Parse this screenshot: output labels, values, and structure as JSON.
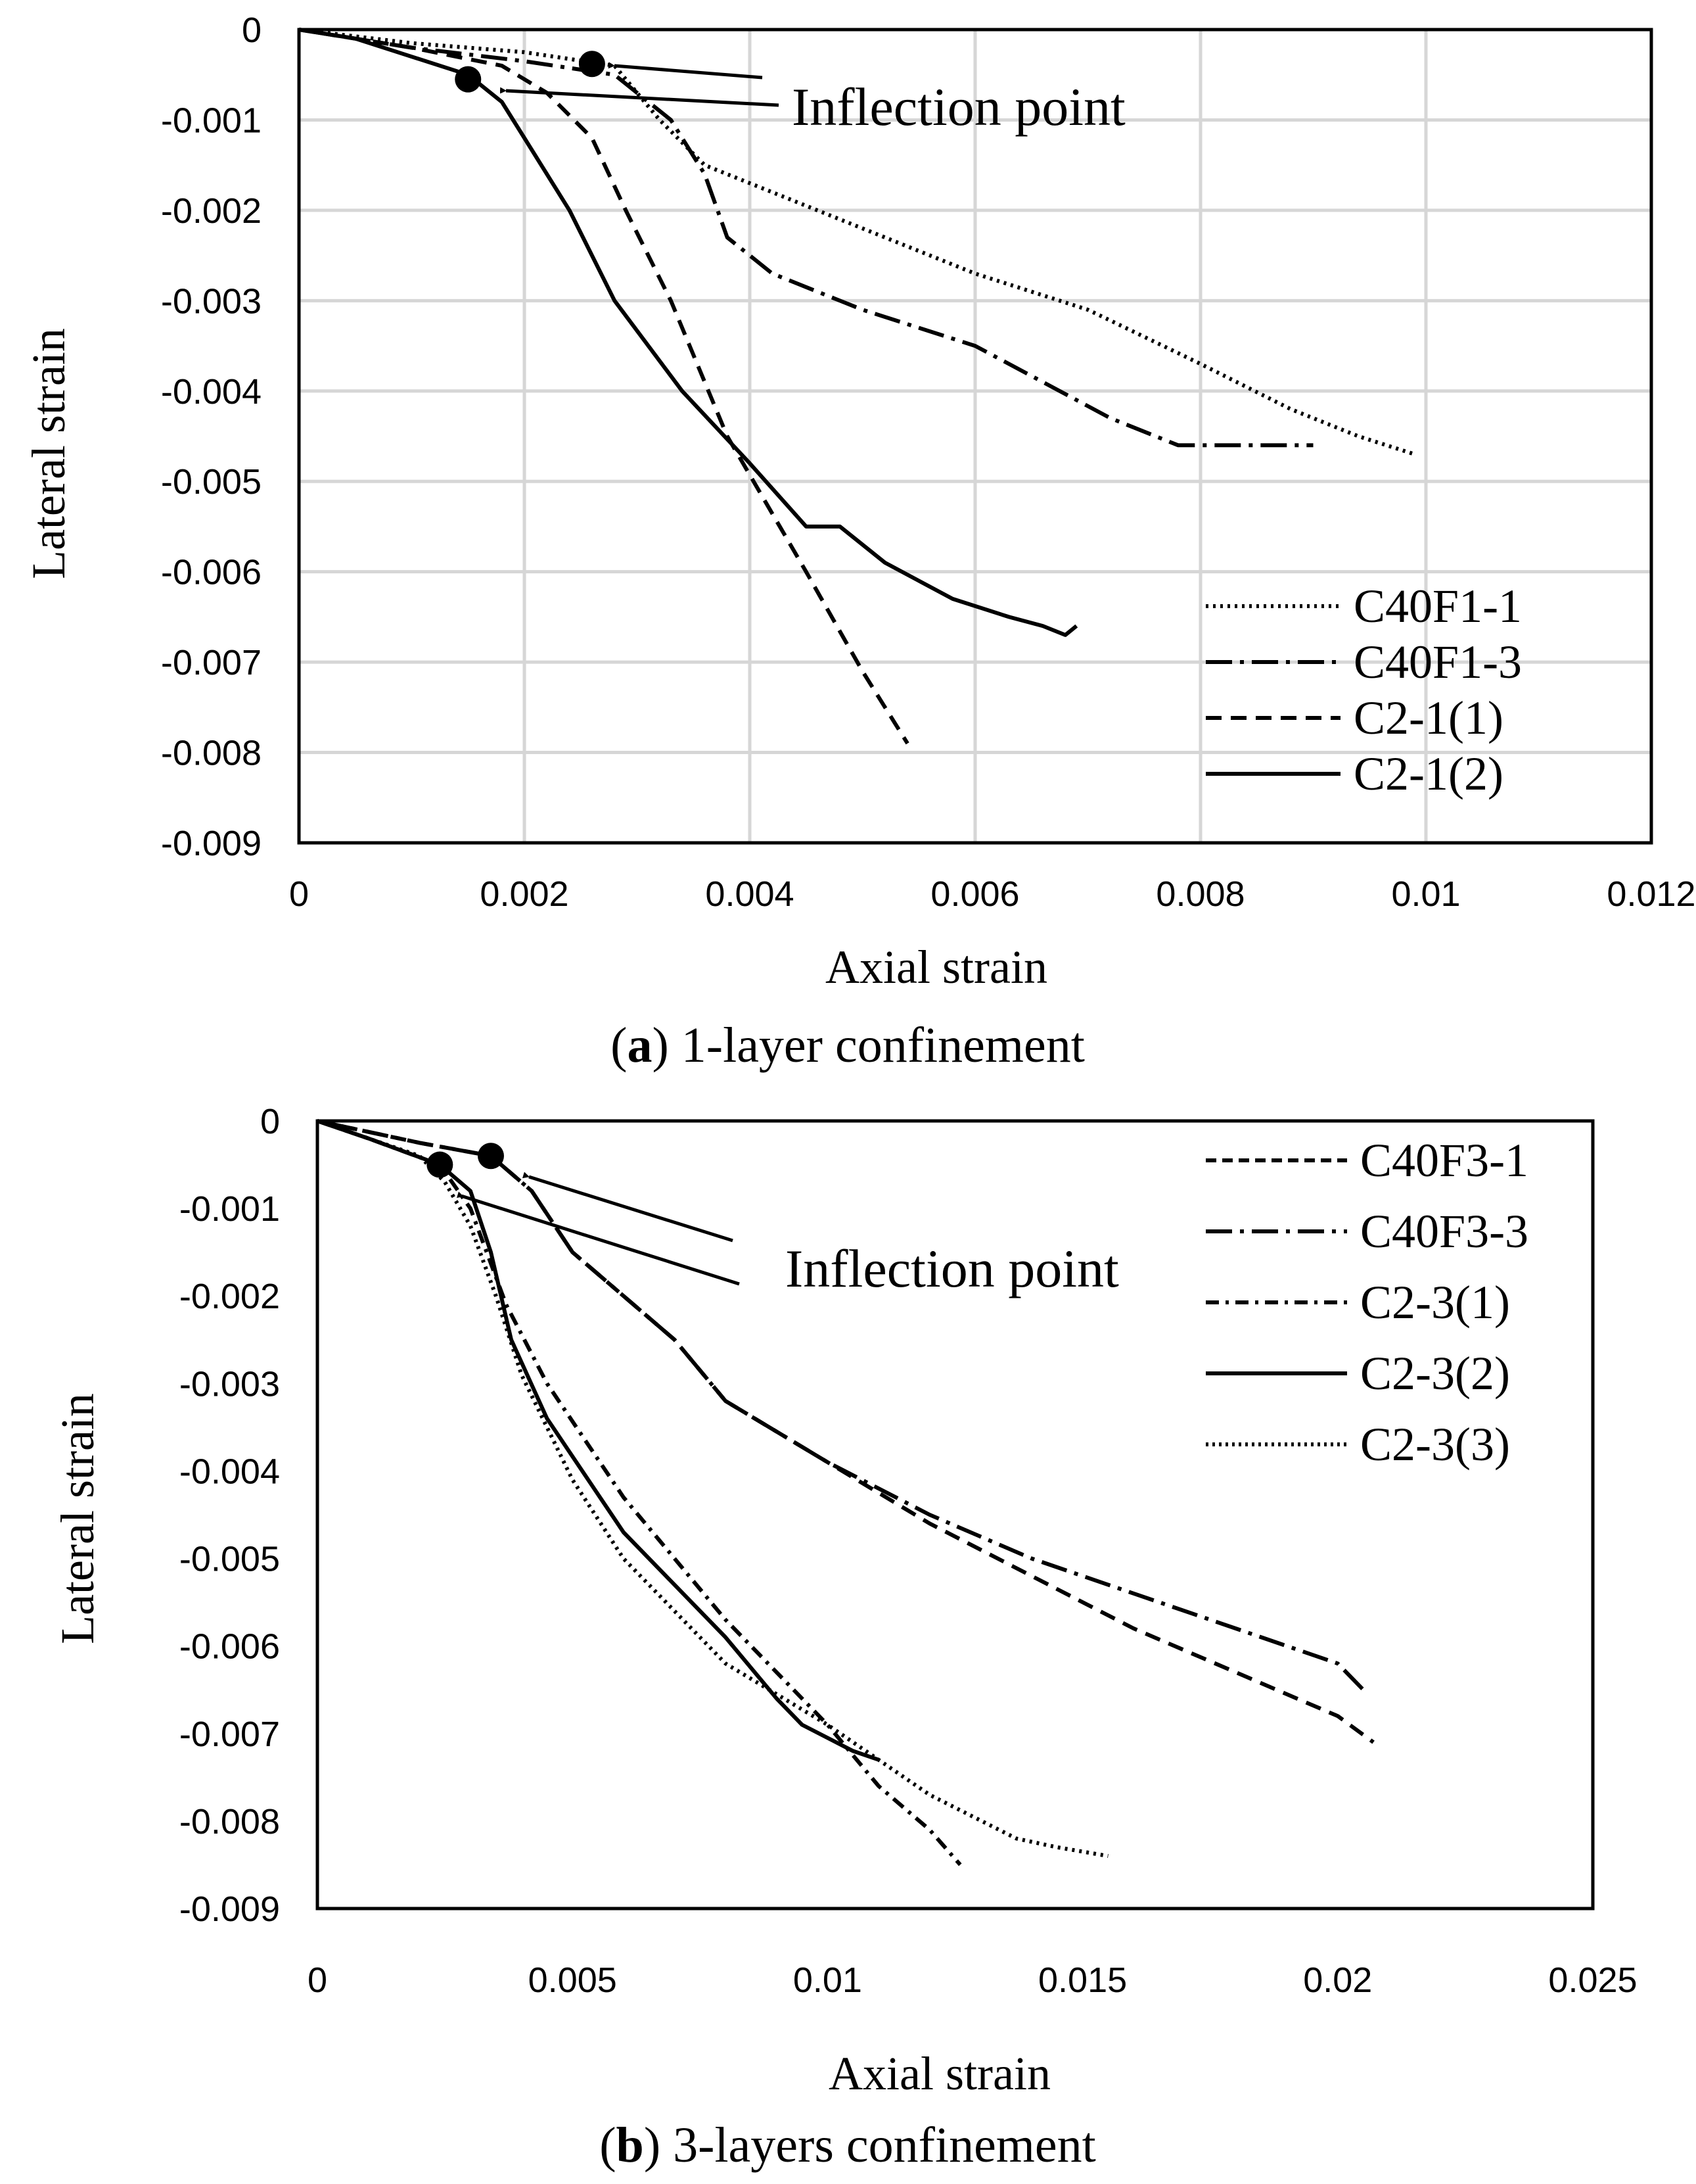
{
  "chart_data": [
    {
      "type": "line",
      "caption_label": "a",
      "caption_text": ") 1-layer confinement",
      "caption_open": "(",
      "xlabel": "Axial strain",
      "ylabel": "Lateral strain",
      "xlim": [
        0,
        0.012
      ],
      "ylim": [
        -0.009,
        0
      ],
      "xticks": [
        0,
        0.002,
        0.004,
        0.006,
        0.008,
        0.01,
        0.012
      ],
      "xtick_labels": [
        "0",
        "0.002",
        "0.004",
        "0.006",
        "0.008",
        "0.01",
        "0.012"
      ],
      "yticks": [
        0,
        -0.001,
        -0.002,
        -0.003,
        -0.004,
        -0.005,
        -0.006,
        -0.007,
        -0.008,
        -0.009
      ],
      "ytick_labels": [
        "0",
        "-0.001",
        "-0.002",
        "-0.003",
        "-0.004",
        "-0.005",
        "-0.006",
        "-0.007",
        "-0.008",
        "-0.009"
      ],
      "grid": true,
      "legend_position": "bottom-right",
      "annotation": "Inflection point",
      "inflection_points": [
        [
          0.0026,
          -0.00038
        ],
        [
          0.0015,
          -0.00055
        ]
      ],
      "series": [
        {
          "name": "C40F1-1",
          "style": "dotted",
          "x": [
            0,
            0.001,
            0.002,
            0.0028,
            0.0032,
            0.0036,
            0.0042,
            0.005,
            0.006,
            0.007,
            0.0075,
            0.008,
            0.0088,
            0.0094,
            0.0099
          ],
          "y": [
            0,
            -0.00015,
            -0.00025,
            -0.0004,
            -0.001,
            -0.0015,
            -0.0018,
            -0.0022,
            -0.0027,
            -0.0031,
            -0.0034,
            -0.0037,
            -0.0042,
            -0.0045,
            -0.0047
          ]
        },
        {
          "name": "C40F1-3",
          "style": "dashdot",
          "x": [
            0,
            0.001,
            0.002,
            0.0028,
            0.0033,
            0.0036,
            0.0038,
            0.0042,
            0.005,
            0.006,
            0.0066,
            0.0072,
            0.0078,
            0.0085,
            0.009
          ],
          "y": [
            0,
            -0.0002,
            -0.00035,
            -0.0005,
            -0.001,
            -0.0016,
            -0.0023,
            -0.0027,
            -0.0031,
            -0.0035,
            -0.0039,
            -0.0043,
            -0.0046,
            -0.0046,
            -0.0046
          ]
        },
        {
          "name": "C2-1(1)",
          "style": "dashed",
          "x": [
            0,
            0.001,
            0.0018,
            0.0022,
            0.0026,
            0.0029,
            0.0033,
            0.0038,
            0.0045,
            0.005,
            0.0054
          ],
          "y": [
            0,
            -0.0002,
            -0.0004,
            -0.0007,
            -0.0012,
            -0.002,
            -0.003,
            -0.0045,
            -0.006,
            -0.0071,
            -0.0079
          ]
        },
        {
          "name": "C2-1(2)",
          "style": "solid",
          "x": [
            0,
            0.0005,
            0.0015,
            0.0018,
            0.002,
            0.0024,
            0.0028,
            0.0034,
            0.004,
            0.0045,
            0.0048,
            0.0052,
            0.0058,
            0.0063,
            0.0066,
            0.0068,
            0.0069
          ],
          "y": [
            0,
            -0.0001,
            -0.0005,
            -0.0008,
            -0.0012,
            -0.002,
            -0.003,
            -0.004,
            -0.0048,
            -0.0055,
            -0.0055,
            -0.0059,
            -0.0063,
            -0.0065,
            -0.0066,
            -0.0067,
            -0.0066
          ]
        }
      ]
    },
    {
      "type": "line",
      "caption_label": "b",
      "caption_text": ") 3-layers confinement",
      "caption_open": "(",
      "xlabel": "Axial strain",
      "ylabel": "Lateral strain",
      "xlim": [
        0,
        0.025
      ],
      "ylim": [
        -0.009,
        0
      ],
      "xticks": [
        0,
        0.005,
        0.01,
        0.015,
        0.02,
        0.025
      ],
      "xtick_labels": [
        "0",
        "0.005",
        "0.01",
        "0.015",
        "0.02",
        "0.025"
      ],
      "yticks": [
        0,
        -0.001,
        -0.002,
        -0.003,
        -0.004,
        -0.005,
        -0.006,
        -0.007,
        -0.008,
        -0.009
      ],
      "ytick_labels": [
        "0",
        "-0.001",
        "-0.002",
        "-0.003",
        "-0.004",
        "-0.005",
        "-0.006",
        "-0.007",
        "-0.008",
        "-0.009"
      ],
      "grid": false,
      "legend_position": "top-right",
      "annotation": "Inflection point",
      "inflection_points": [
        [
          0.0034,
          -0.0004
        ],
        [
          0.0024,
          -0.0005
        ]
      ],
      "series": [
        {
          "name": "C40F3-1",
          "style": "dashed",
          "x": [
            0,
            0.002,
            0.0034,
            0.0042,
            0.005,
            0.006,
            0.007,
            0.008,
            0.01,
            0.012,
            0.014,
            0.016,
            0.018,
            0.02,
            0.0207
          ],
          "y": [
            0,
            -0.00025,
            -0.0004,
            -0.0008,
            -0.0015,
            -0.002,
            -0.0025,
            -0.0032,
            -0.0039,
            -0.0046,
            -0.0052,
            -0.0058,
            -0.0063,
            -0.0068,
            -0.0071
          ]
        },
        {
          "name": "C40F3-3",
          "style": "dashdot",
          "x": [
            0,
            0.002,
            0.0034,
            0.0042,
            0.005,
            0.006,
            0.007,
            0.008,
            0.01,
            0.012,
            0.014,
            0.016,
            0.018,
            0.02,
            0.0205
          ],
          "y": [
            0,
            -0.00025,
            -0.0004,
            -0.0008,
            -0.0015,
            -0.002,
            -0.0025,
            -0.0032,
            -0.0039,
            -0.0045,
            -0.005,
            -0.0054,
            -0.0058,
            -0.0062,
            -0.0065
          ]
        },
        {
          "name": "C2-3(1)",
          "style": "dashdot2",
          "x": [
            0,
            0.001,
            0.0024,
            0.003,
            0.0037,
            0.0045,
            0.006,
            0.008,
            0.01,
            0.011,
            0.012,
            0.0126
          ],
          "y": [
            0,
            -0.0002,
            -0.0005,
            -0.001,
            -0.0021,
            -0.003,
            -0.0043,
            -0.0057,
            -0.0069,
            -0.0076,
            -0.0081,
            -0.0085
          ]
        },
        {
          "name": "C2-3(2)",
          "style": "solid",
          "x": [
            0,
            0.001,
            0.0024,
            0.003,
            0.0034,
            0.0038,
            0.0045,
            0.006,
            0.008,
            0.009,
            0.0095,
            0.0105,
            0.011
          ],
          "y": [
            0,
            -0.0002,
            -0.0005,
            -0.0008,
            -0.0015,
            -0.0025,
            -0.0034,
            -0.0047,
            -0.0059,
            -0.0066,
            -0.0069,
            -0.0072,
            -0.0073
          ]
        },
        {
          "name": "C2-3(3)",
          "style": "dotted",
          "x": [
            0,
            0.001,
            0.002,
            0.0025,
            0.003,
            0.0035,
            0.004,
            0.005,
            0.006,
            0.008,
            0.01,
            0.011,
            0.012,
            0.0137,
            0.0145,
            0.0155
          ],
          "y": [
            0,
            -0.0002,
            -0.0004,
            -0.0007,
            -0.0012,
            -0.002,
            -0.0029,
            -0.0041,
            -0.005,
            -0.0062,
            -0.0069,
            -0.0073,
            -0.0077,
            -0.0082,
            -0.0083,
            -0.0084
          ]
        }
      ]
    }
  ]
}
